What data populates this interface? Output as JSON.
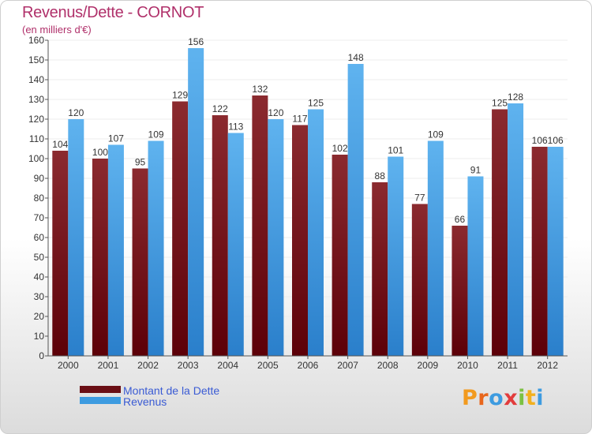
{
  "chart_data": {
    "type": "bar",
    "title": "Revenus/Dette - CORNOT",
    "subtitle": "(en milliers d'€)",
    "categories": [
      "2000",
      "2001",
      "2002",
      "2003",
      "2004",
      "2005",
      "2006",
      "2007",
      "2008",
      "2009",
      "2010",
      "2011",
      "2012"
    ],
    "series": [
      {
        "name": "Montant de la Dette",
        "values": [
          104,
          100,
          95,
          129,
          122,
          132,
          117,
          102,
          88,
          77,
          66,
          125,
          106
        ],
        "color": "#7a1a1f"
      },
      {
        "name": "Revenus",
        "values": [
          120,
          107,
          109,
          156,
          113,
          120,
          125,
          148,
          101,
          109,
          91,
          128,
          106
        ],
        "color": "#55a8e8"
      }
    ],
    "ylim": [
      0,
      160
    ],
    "ytick_step": 10,
    "grid": true,
    "legend_position": "bottom-left"
  },
  "colors": {
    "title": "#b0306a",
    "legend_text": "#3a5bd4",
    "grid": "#ececec",
    "tick_text": "#333333"
  },
  "logo": {
    "text": "Proxiti",
    "letters": [
      {
        "ch": "P",
        "color": "#f29a1e"
      },
      {
        "ch": "r",
        "color": "#e8661c"
      },
      {
        "ch": "o",
        "color": "#3d9be0"
      },
      {
        "ch": "x",
        "color": "#e23c3c"
      },
      {
        "ch": "i",
        "color": "#7cc142"
      },
      {
        "ch": "t",
        "color": "#f2b01e"
      },
      {
        "ch": "i",
        "color": "#3d9be0"
      }
    ]
  }
}
